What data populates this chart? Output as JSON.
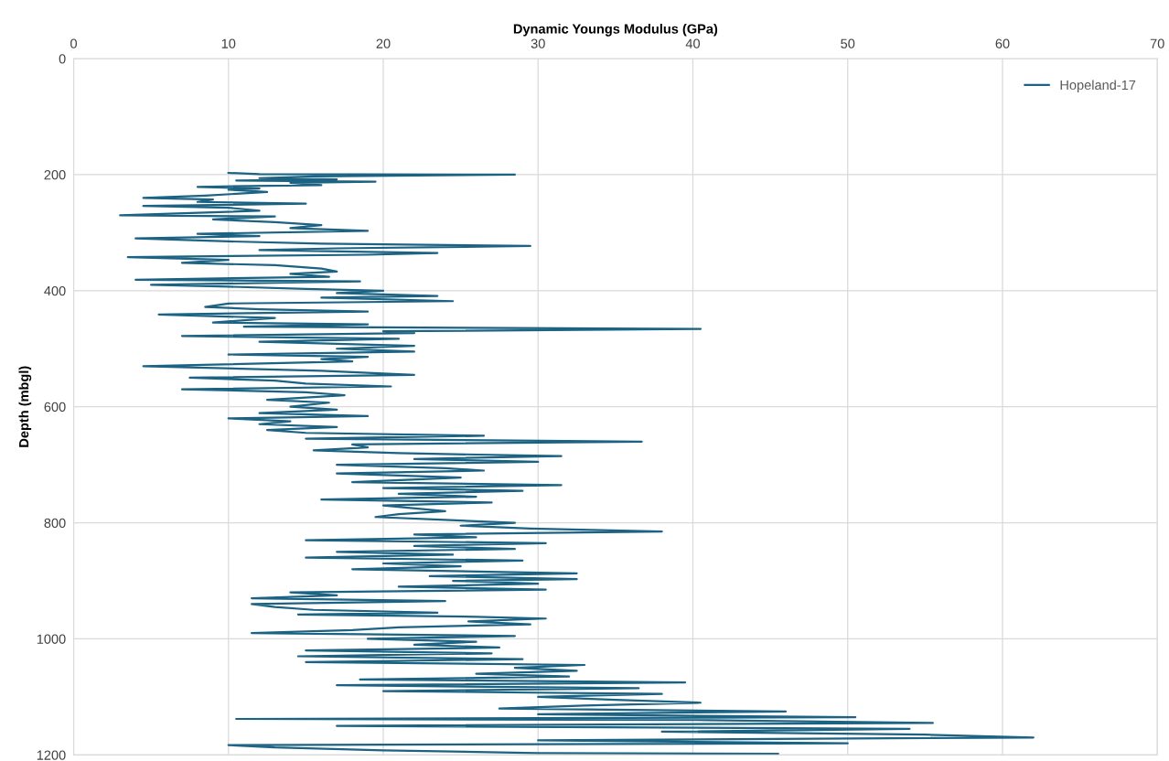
{
  "chart_data": {
    "type": "line",
    "xlabel": "Dynamic Youngs Modulus (GPa)",
    "ylabel": "Depth (mbgl)",
    "xlim": [
      0,
      70
    ],
    "xticks": [
      0,
      10,
      20,
      30,
      40,
      50,
      60,
      70
    ],
    "ylim": [
      1200,
      0
    ],
    "yticks": [
      0,
      200,
      400,
      600,
      800,
      1000,
      1200
    ],
    "grid": true,
    "legend": "top right",
    "marker": "none",
    "line_style": "solid",
    "series": [
      {
        "name": "Hopeland-17",
        "color": "#1b6283",
        "x": [
          10,
          12,
          28.5,
          15.5,
          12,
          17,
          10.5,
          19.5,
          14,
          16,
          8,
          12,
          10,
          12.5,
          8.5,
          4.5,
          9,
          8,
          15,
          4.5,
          10,
          12,
          9,
          3,
          13,
          9,
          13,
          16,
          14,
          19,
          8,
          12,
          4,
          10,
          16,
          29.5,
          17,
          12,
          23.5,
          19,
          3.5,
          10,
          7,
          13,
          16,
          17,
          14,
          16.5,
          4,
          18.5,
          5,
          10,
          15,
          20,
          17,
          23.5,
          16,
          24.5,
          10,
          8.5,
          12,
          19,
          5.5,
          13,
          9,
          19,
          11,
          40.5,
          20,
          22,
          7,
          21,
          12,
          22,
          17,
          22,
          10,
          19,
          16,
          18,
          4.5,
          16,
          22,
          7.5,
          13,
          15,
          20.5,
          7,
          15,
          17.5,
          12.5,
          16.5,
          14,
          17,
          12,
          19,
          10,
          14,
          12,
          17,
          12.5,
          15,
          26.5,
          15,
          36.7,
          18,
          19,
          15.5,
          21,
          31.5,
          22,
          30,
          17,
          24,
          26.5,
          17,
          25,
          18,
          31.5,
          20,
          29,
          21,
          26,
          16,
          27,
          20,
          24,
          21,
          19.5,
          24,
          28.5,
          25,
          29.5,
          38,
          22,
          26,
          15,
          30.5,
          22,
          28.5,
          17,
          24.5,
          15,
          29,
          20,
          25,
          18,
          32.5,
          23,
          32.5,
          24.5,
          30,
          21,
          30.5,
          14,
          17,
          11.5,
          24,
          11.5,
          13,
          15.5,
          23.5,
          14.5,
          26,
          30.5,
          25.5,
          29.5,
          21,
          18,
          11.5,
          28.5,
          19,
          26,
          22,
          27.5,
          15,
          27,
          14.5,
          29,
          15,
          33,
          28.5,
          32.5,
          26,
          32,
          18.5,
          39.5,
          17,
          36.5,
          20,
          38,
          30,
          35,
          40.5,
          33,
          27.5,
          46,
          30,
          50.5,
          10.5,
          41,
          55.5,
          17,
          54,
          38,
          55,
          62,
          30,
          50,
          10,
          13,
          20,
          30,
          45.5
        ],
        "values": [
          197,
          199,
          200,
          203,
          206,
          208,
          210,
          212,
          214,
          218,
          221,
          224,
          226,
          230,
          236,
          240,
          243,
          247,
          250,
          254,
          257,
          262,
          265,
          270,
          272,
          277,
          282,
          287,
          292,
          297,
          302,
          306,
          310,
          315,
          319,
          323,
          327,
          330,
          335,
          338,
          342,
          347,
          352,
          356,
          362,
          367,
          371,
          376,
          381,
          384,
          390,
          393,
          397,
          400,
          404,
          409,
          412,
          418,
          422,
          428,
          432,
          436,
          441,
          447,
          455,
          458,
          462,
          466,
          470,
          473,
          478,
          483,
          488,
          495,
          500,
          505,
          510,
          514,
          518,
          522,
          530,
          538,
          545,
          550,
          555,
          560,
          565,
          570,
          575,
          580,
          588,
          593,
          600,
          605,
          611,
          616,
          620,
          625,
          630,
          635,
          640,
          645,
          650,
          655,
          660,
          665,
          670,
          675,
          680,
          685,
          690,
          695,
          700,
          706,
          710,
          715,
          722,
          730,
          735,
          740,
          745,
          750,
          755,
          760,
          765,
          770,
          780,
          785,
          790,
          795,
          800,
          805,
          810,
          815,
          820,
          825,
          830,
          835,
          840,
          845,
          850,
          855,
          860,
          865,
          870,
          875,
          880,
          887,
          892,
          897,
          900,
          905,
          910,
          915,
          920,
          925,
          930,
          935,
          940,
          945,
          950,
          955,
          958,
          962,
          965,
          970,
          975,
          980,
          985,
          990,
          995,
          1000,
          1005,
          1010,
          1015,
          1020,
          1025,
          1030,
          1035,
          1040,
          1045,
          1050,
          1055,
          1060,
          1065,
          1070,
          1075,
          1080,
          1085,
          1090,
          1095,
          1100,
          1105,
          1110,
          1115,
          1120,
          1125,
          1130,
          1135,
          1138,
          1140,
          1145,
          1150,
          1155,
          1160,
          1165,
          1170,
          1175,
          1180,
          1183,
          1187,
          1192,
          1197,
          1198
        ]
      }
    ]
  }
}
